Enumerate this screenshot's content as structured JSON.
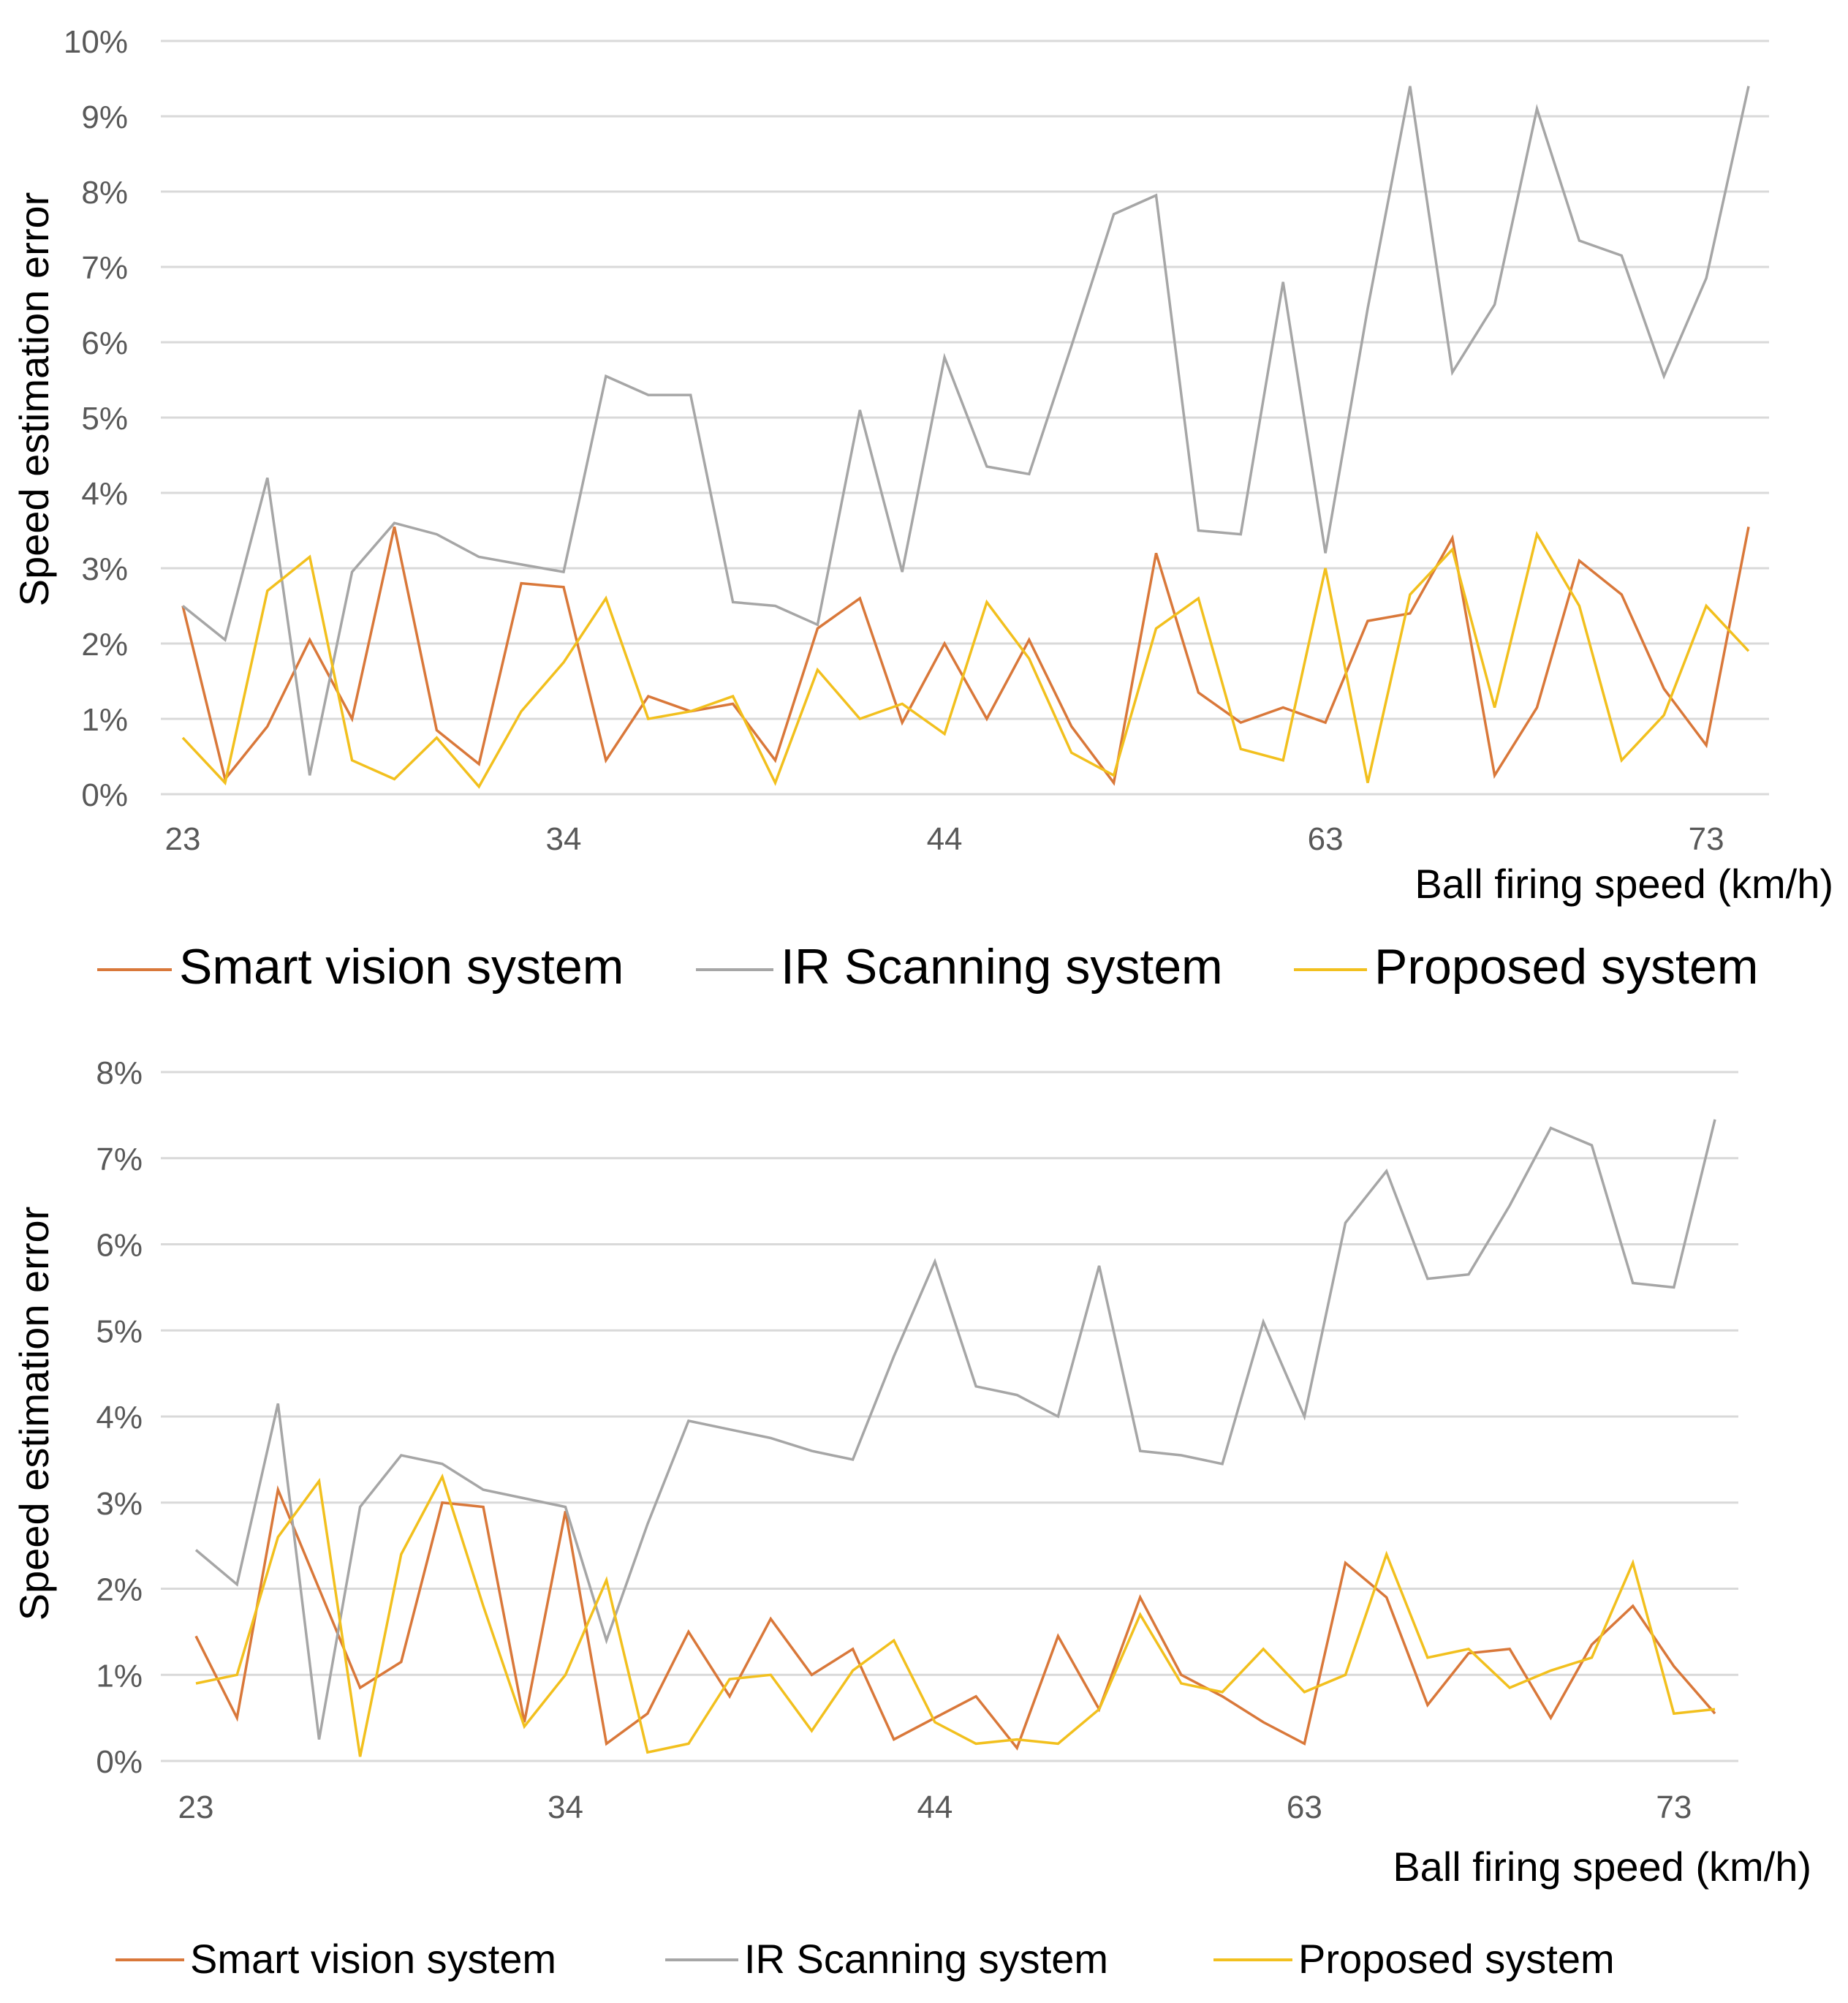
{
  "colors": {
    "smart": "#D9783A",
    "ir": "#A6A6A6",
    "proposed": "#F2C01E",
    "grid": "#D9D9D9",
    "tick": "#595959"
  },
  "chart_data": [
    {
      "type": "line",
      "title": "",
      "ylabel": "Speed estimation error",
      "xlabel": "Ball firing speed (km/h)",
      "ylim": [
        0,
        10
      ],
      "yticks": [
        0,
        1,
        2,
        3,
        4,
        5,
        6,
        7,
        8,
        9,
        10
      ],
      "ytick_labels": [
        "0%",
        "1%",
        "2%",
        "3%",
        "4%",
        "5%",
        "6%",
        "7%",
        "8%",
        "9%",
        "10%"
      ],
      "xtick_labels": [
        {
          "index": 0,
          "label": "23"
        },
        {
          "index": 9,
          "label": "34"
        },
        {
          "index": 18,
          "label": "44"
        },
        {
          "index": 27,
          "label": "63"
        },
        {
          "index": 36,
          "label": "73"
        }
      ],
      "legend": "bottom",
      "series": [
        {
          "name": "Smart vision system",
          "key": "smart",
          "values": [
            2.5,
            0.2,
            0.9,
            2.05,
            1.0,
            3.55,
            0.85,
            0.4,
            2.8,
            2.75,
            0.45,
            1.3,
            1.1,
            1.2,
            0.45,
            2.2,
            2.6,
            0.95,
            2.0,
            1.0,
            2.05,
            0.9,
            0.15,
            3.2,
            1.35,
            0.95,
            1.15,
            0.95,
            2.3,
            2.4,
            3.4,
            0.25,
            1.15,
            3.1,
            2.65,
            1.4,
            0.65,
            3.55
          ]
        },
        {
          "name": "IR Scanning system",
          "key": "ir",
          "values": [
            2.5,
            2.05,
            4.2,
            0.25,
            2.95,
            3.6,
            3.45,
            3.15,
            3.05,
            2.95,
            5.55,
            5.3,
            5.3,
            2.55,
            2.5,
            2.25,
            5.1,
            2.95,
            5.8,
            4.35,
            4.25,
            5.95,
            7.7,
            7.95,
            3.5,
            3.45,
            6.8,
            3.2,
            6.45,
            9.4,
            5.6,
            6.5,
            9.1,
            7.35,
            7.15,
            5.55,
            6.85,
            9.4
          ]
        },
        {
          "name": "Proposed system",
          "key": "proposed",
          "values": [
            0.75,
            0.15,
            2.7,
            3.15,
            0.45,
            0.2,
            0.75,
            0.1,
            1.1,
            1.75,
            2.6,
            1.0,
            1.1,
            1.3,
            0.15,
            1.65,
            1.0,
            1.2,
            0.8,
            2.55,
            1.8,
            0.55,
            0.25,
            2.2,
            2.6,
            0.6,
            0.45,
            3.0,
            0.15,
            2.65,
            3.25,
            1.15,
            3.45,
            2.5,
            0.45,
            1.05,
            2.5,
            1.9
          ]
        }
      ]
    },
    {
      "type": "line",
      "title": "",
      "ylabel": "Speed estimation error",
      "xlabel": "Ball firing speed (km/h)",
      "ylim": [
        0,
        8
      ],
      "yticks": [
        0,
        1,
        2,
        3,
        4,
        5,
        6,
        7,
        8
      ],
      "ytick_labels": [
        "0%",
        "1%",
        "2%",
        "3%",
        "4%",
        "5%",
        "6%",
        "7%",
        "8%"
      ],
      "xtick_labels": [
        {
          "index": 0,
          "label": "23"
        },
        {
          "index": 9,
          "label": "34"
        },
        {
          "index": 18,
          "label": "44"
        },
        {
          "index": 27,
          "label": "63"
        },
        {
          "index": 36,
          "label": "73"
        }
      ],
      "legend": "bottom",
      "series": [
        {
          "name": "Smart vision system",
          "key": "smart",
          "values": [
            1.45,
            0.5,
            3.15,
            2.0,
            0.85,
            1.15,
            3.0,
            2.95,
            0.45,
            2.9,
            0.2,
            0.55,
            1.5,
            0.75,
            1.65,
            1.0,
            1.3,
            0.25,
            0.5,
            0.75,
            0.15,
            1.45,
            0.6,
            1.9,
            1.0,
            0.75,
            0.45,
            0.2,
            2.3,
            1.9,
            0.65,
            1.25,
            1.3,
            0.5,
            1.35,
            1.8,
            1.1,
            0.55
          ]
        },
        {
          "name": "IR Scanning system",
          "key": "ir",
          "values": [
            2.45,
            2.05,
            4.15,
            0.25,
            2.95,
            3.55,
            3.45,
            3.15,
            3.05,
            2.95,
            1.4,
            2.75,
            3.95,
            3.85,
            3.75,
            3.6,
            3.5,
            4.7,
            5.8,
            4.35,
            4.25,
            4.0,
            5.75,
            3.6,
            3.55,
            3.45,
            5.1,
            4.0,
            6.25,
            6.85,
            5.6,
            5.65,
            6.45,
            7.35,
            7.15,
            5.55,
            5.5,
            7.45
          ]
        },
        {
          "name": "Proposed system",
          "key": "proposed",
          "values": [
            0.9,
            1.0,
            2.6,
            3.25,
            0.05,
            2.4,
            3.3,
            1.8,
            0.4,
            1.0,
            2.1,
            0.1,
            0.2,
            0.95,
            1.0,
            0.35,
            1.05,
            1.4,
            0.45,
            0.2,
            0.25,
            0.2,
            0.6,
            1.7,
            0.9,
            0.8,
            1.3,
            0.8,
            1.0,
            2.4,
            1.2,
            1.3,
            0.85,
            1.05,
            1.2,
            2.3,
            0.55,
            0.6
          ]
        }
      ]
    }
  ]
}
